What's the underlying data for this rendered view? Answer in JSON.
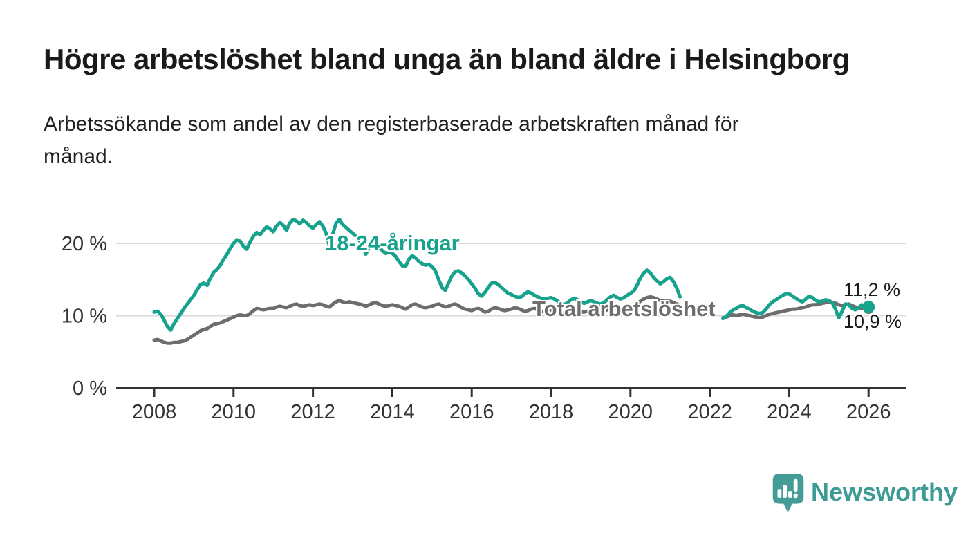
{
  "header": {
    "title": "Högre arbetslöshet bland unga än bland äldre i Helsingborg",
    "subtitle_lines": [
      "Arbetssökande som andel av den registerbaserade arbetskraften månad för",
      "månad."
    ]
  },
  "branding": {
    "name": "Newsworthy",
    "logo_icon": "bar-chart-speech-bubble-icon",
    "brand_color": "#3e9a95"
  },
  "colors": {
    "youth_line": "#17a28e",
    "total_line": "#6d6d6d",
    "grid": "#d9d9d9",
    "axis": "#333333",
    "title_text": "#1a1a1a"
  },
  "chart_data": {
    "type": "line",
    "unit": "%",
    "grid": "horizontal-only",
    "x_ticks": [
      2008,
      2010,
      2012,
      2014,
      2016,
      2018,
      2020,
      2022,
      2024,
      2026
    ],
    "y_ticks": [
      {
        "value": 0,
        "label": "0 %"
      },
      {
        "value": 10,
        "label": "10 %"
      },
      {
        "value": 20,
        "label": "20 %"
      }
    ],
    "x_range": [
      2008.0,
      2026.0
    ],
    "y_range": [
      0,
      24
    ],
    "data_gap": {
      "from": 2021.33,
      "to": 2022.33
    },
    "series": [
      {
        "name": "18-24-åringar",
        "color": "#17a28e",
        "end_label": "11,2 %",
        "end_value": 11.2,
        "end_marker": "dot",
        "segments": [
          {
            "start": 2008.0,
            "step_months": 1,
            "values": [
              10.5,
              10.6,
              10.2,
              9.4,
              8.5,
              8.0,
              8.9,
              9.6,
              10.3,
              11.0,
              11.6,
              12.2,
              12.8,
              13.6,
              14.3,
              14.5,
              14.2,
              15.2,
              16.0,
              16.4,
              17.0,
              17.8,
              18.5,
              19.3,
              20.0,
              20.5,
              20.3,
              19.6,
              19.2,
              20.2,
              21.0,
              21.5,
              21.2,
              21.8,
              22.3,
              22.0,
              21.6,
              22.4,
              22.9,
              22.5,
              21.8,
              22.8,
              23.3,
              23.1,
              22.7,
              23.2,
              22.9,
              22.4,
              22.1,
              22.6,
              23.0,
              22.4,
              21.4,
              19.6,
              21.3,
              22.8,
              23.3,
              22.6,
              22.2,
              21.8,
              21.4,
              21.0,
              20.4,
              19.7,
              18.5,
              19.5,
              20.3,
              20.0,
              19.5,
              19.0,
              18.6,
              18.8,
              18.6,
              18.2,
              17.5,
              16.9,
              16.8,
              17.8,
              18.3,
              18.0,
              17.5,
              17.2,
              17.0,
              17.1,
              16.8,
              16.2,
              15.0,
              13.9,
              13.5,
              14.5,
              15.5,
              16.1,
              16.2,
              15.9,
              15.5,
              15.0,
              14.4,
              13.8,
              13.0,
              12.7,
              13.2,
              13.9,
              14.5,
              14.6,
              14.3,
              13.9,
              13.5,
              13.1,
              12.9,
              12.7,
              12.5,
              12.6,
              13.0,
              13.3,
              13.1,
              12.8,
              12.6,
              12.4,
              12.3,
              12.4,
              12.5,
              12.3,
              12.0,
              11.7,
              11.5,
              11.8,
              12.2,
              12.4,
              12.2,
              11.9,
              11.7,
              11.9,
              12.1,
              11.9,
              11.7,
              11.6,
              11.8,
              12.2,
              12.6,
              12.8,
              12.5,
              12.3,
              12.5,
              12.8,
              13.1,
              13.4,
              14.2,
              15.2,
              15.9,
              16.3,
              15.9,
              15.3,
              14.8,
              14.4,
              14.7,
              15.1,
              15.3,
              14.7,
              13.8,
              12.6
            ]
          },
          {
            "start": 2022.3333,
            "step_months": 1,
            "values": [
              9.6,
              9.9,
              10.4,
              10.8,
              11.0,
              11.3,
              11.4,
              11.1,
              10.9,
              10.6,
              10.4,
              10.3,
              10.4,
              10.9,
              11.5,
              11.9,
              12.2,
              12.5,
              12.8,
              13.0,
              13.0,
              12.7,
              12.4,
              12.1,
              11.9,
              12.3,
              12.7,
              12.5,
              12.1,
              11.9,
              12.0,
              12.2,
              12.1,
              11.8,
              10.9,
              9.7,
              10.6,
              11.6,
              11.5,
              11.0,
              10.8,
              11.1,
              11.5,
              11.3,
              11.2
            ]
          }
        ]
      },
      {
        "name": "Total arbetslöshet",
        "color": "#6d6d6d",
        "end_label": "10,9 %",
        "end_value": 10.9,
        "end_marker": "dot",
        "segments": [
          {
            "start": 2008.0,
            "step_months": 1,
            "values": [
              6.6,
              6.7,
              6.5,
              6.3,
              6.2,
              6.2,
              6.3,
              6.3,
              6.4,
              6.5,
              6.7,
              7.0,
              7.3,
              7.6,
              7.9,
              8.1,
              8.2,
              8.5,
              8.8,
              8.9,
              9.0,
              9.2,
              9.4,
              9.6,
              9.8,
              10.0,
              10.1,
              10.0,
              10.0,
              10.3,
              10.7,
              11.0,
              10.9,
              10.8,
              10.9,
              11.0,
              11.0,
              11.2,
              11.3,
              11.2,
              11.1,
              11.3,
              11.5,
              11.6,
              11.4,
              11.3,
              11.4,
              11.5,
              11.4,
              11.5,
              11.6,
              11.5,
              11.3,
              11.2,
              11.6,
              11.9,
              12.1,
              11.9,
              11.8,
              11.9,
              11.8,
              11.7,
              11.6,
              11.5,
              11.3,
              11.5,
              11.7,
              11.8,
              11.6,
              11.4,
              11.3,
              11.4,
              11.5,
              11.4,
              11.3,
              11.1,
              10.9,
              11.2,
              11.5,
              11.6,
              11.4,
              11.2,
              11.1,
              11.2,
              11.3,
              11.5,
              11.6,
              11.4,
              11.2,
              11.3,
              11.5,
              11.6,
              11.4,
              11.1,
              10.9,
              10.8,
              10.7,
              10.9,
              11.0,
              10.8,
              10.5,
              10.6,
              10.9,
              11.1,
              11.0,
              10.8,
              10.7,
              10.8,
              10.9,
              11.1,
              11.0,
              10.8,
              10.6,
              10.7,
              10.9,
              11.0,
              10.8,
              10.6,
              10.5,
              10.6,
              10.7,
              10.6,
              10.5,
              10.4,
              10.3,
              10.4,
              10.6,
              10.7,
              10.6,
              10.5,
              10.5,
              10.6,
              10.7,
              10.8,
              10.7,
              10.6,
              10.6,
              10.8,
              11.0,
              11.1,
              11.0,
              10.9,
              11.0,
              11.1,
              11.2,
              11.3,
              11.6,
              12.0,
              12.3,
              12.5,
              12.6,
              12.5,
              12.3,
              12.1,
              12.0,
              12.0,
              12.0,
              11.8,
              11.6,
              11.4
            ]
          },
          {
            "start": 2022.3333,
            "step_months": 1,
            "values": [
              9.7,
              9.8,
              10.0,
              10.1,
              10.0,
              10.1,
              10.2,
              10.1,
              10.0,
              9.9,
              9.8,
              9.7,
              9.8,
              10.0,
              10.2,
              10.3,
              10.4,
              10.5,
              10.6,
              10.7,
              10.8,
              10.9,
              10.9,
              11.0,
              11.1,
              11.2,
              11.4,
              11.5,
              11.5,
              11.6,
              11.7,
              11.8,
              11.9,
              11.8,
              11.7,
              11.5,
              11.4,
              11.5,
              11.6,
              11.4,
              11.2,
              11.1,
              11.0,
              10.9,
              10.9
            ]
          }
        ]
      }
    ]
  }
}
